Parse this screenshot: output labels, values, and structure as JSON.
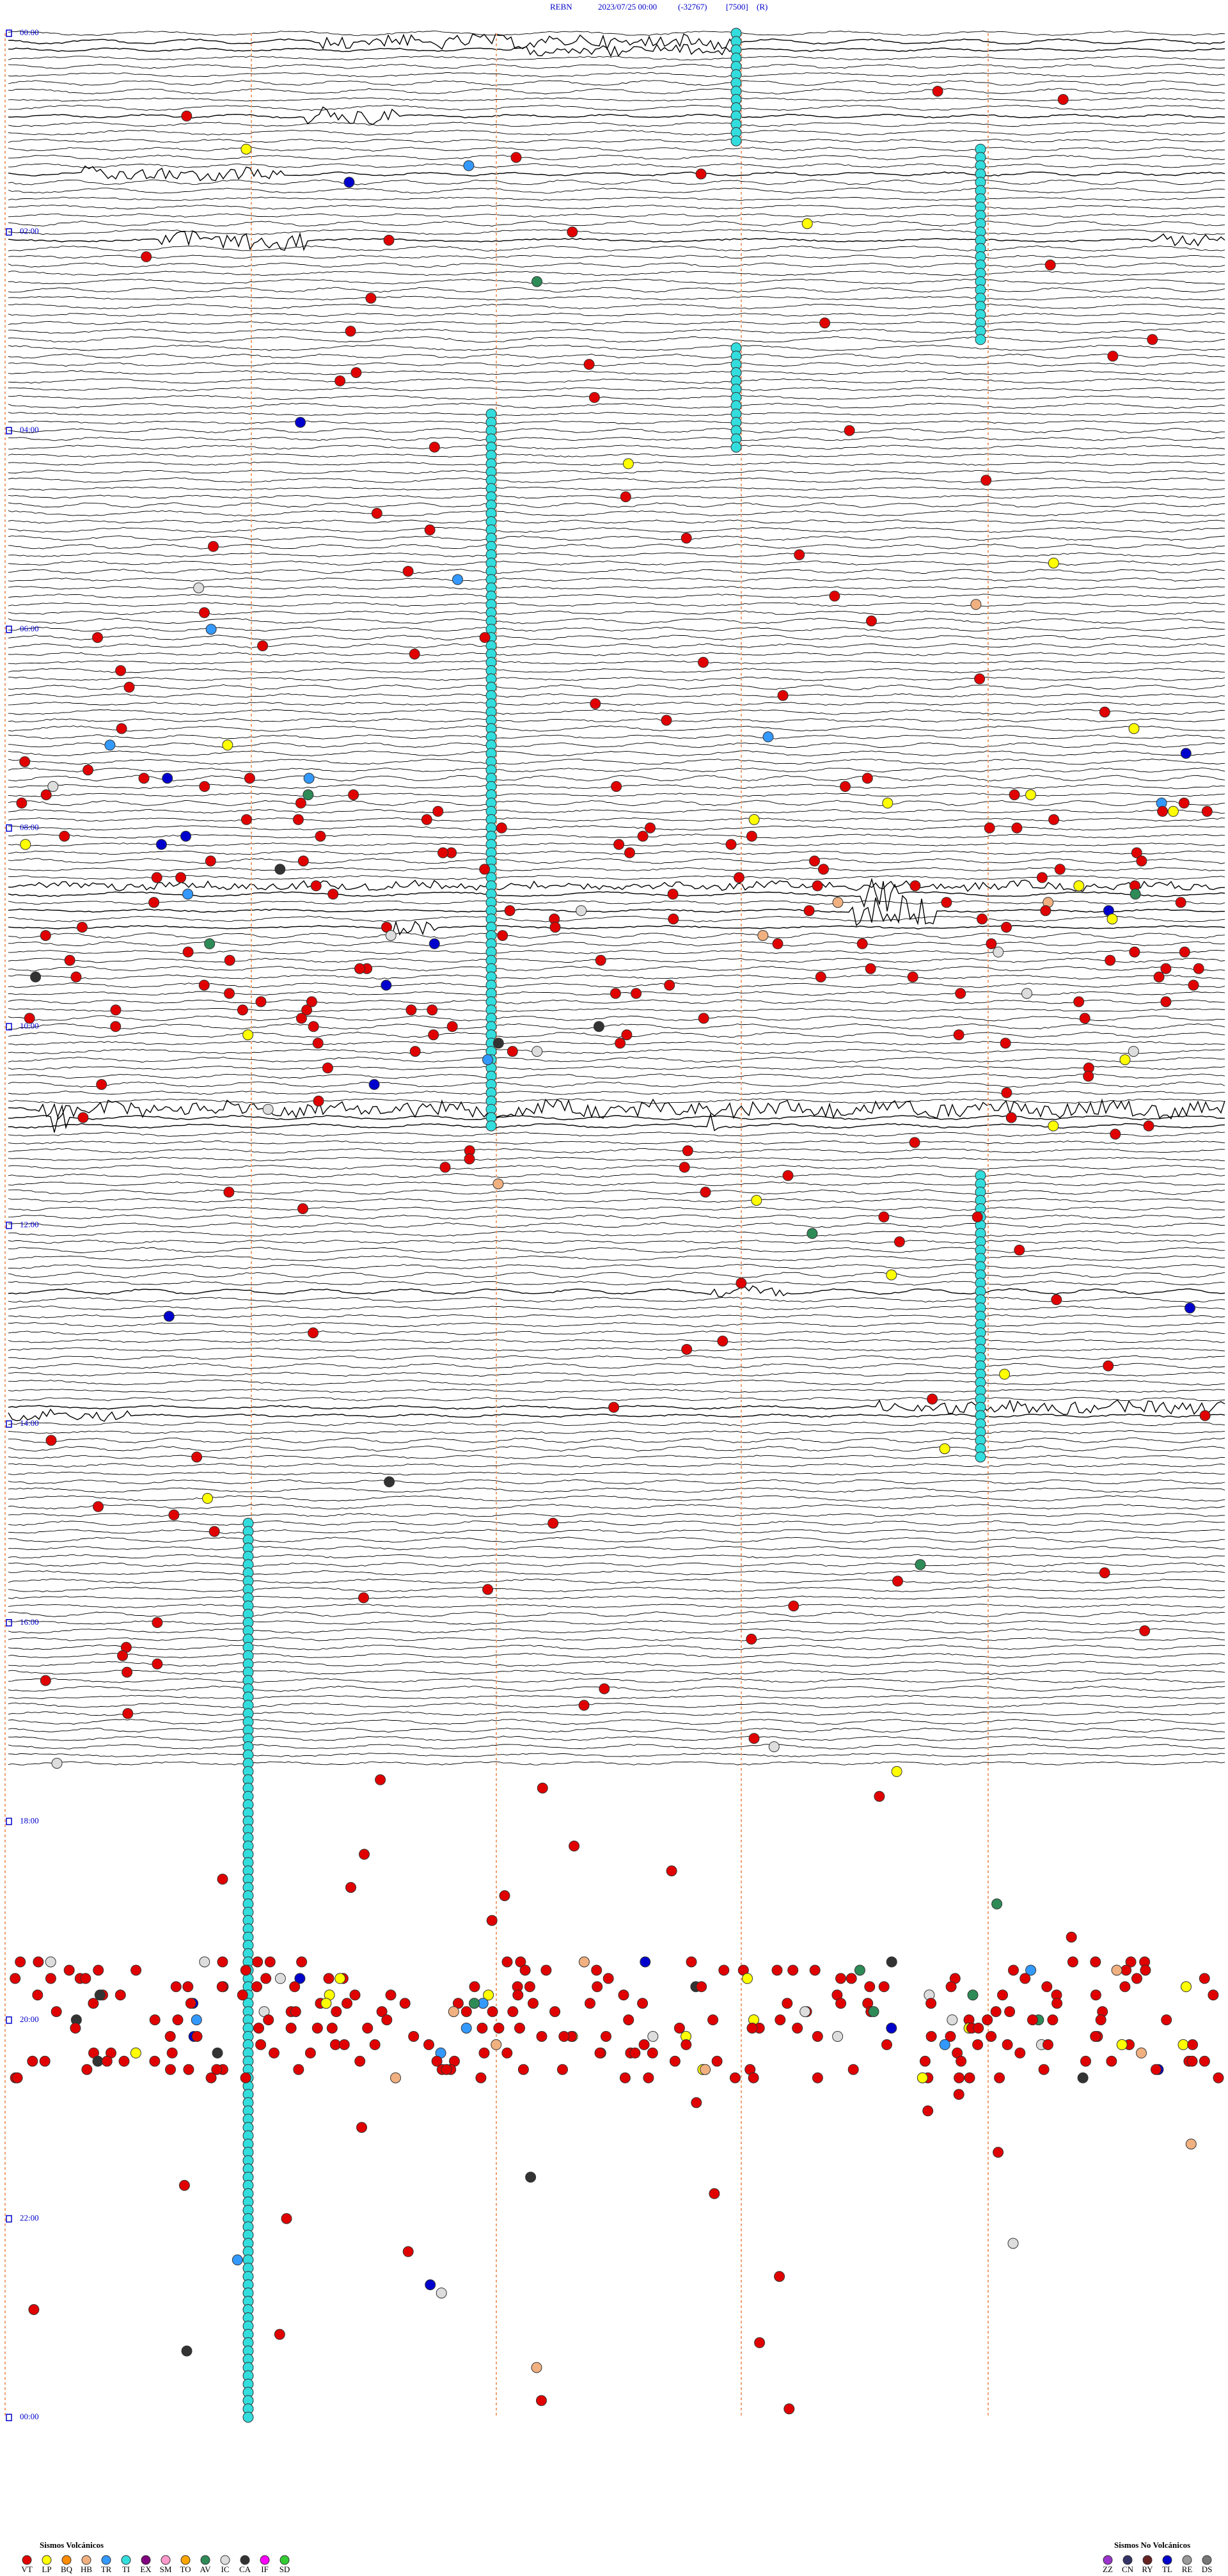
{
  "header": {
    "station": "REBN",
    "datetime": "2023/07/25 00:00",
    "code": "(-32767)",
    "scale": "[7500]",
    "flag": "(R)"
  },
  "time_labels": [
    "00:00",
    "02:00",
    "04:00",
    "06:00",
    "08:00",
    "10:00",
    "12:00",
    "14:00",
    "16:00",
    "18:00",
    "20:00",
    "22:00",
    "00:00"
  ],
  "legend": {
    "volcanic": {
      "title": "Sismos Volcánicos",
      "items": [
        {
          "code": "VT",
          "color": "#e00000"
        },
        {
          "code": "LP",
          "color": "#ffff00"
        },
        {
          "code": "BQ",
          "color": "#ff8c00"
        },
        {
          "code": "HB",
          "color": "#f0b080"
        },
        {
          "code": "TR",
          "color": "#3399ff"
        },
        {
          "code": "TI",
          "color": "#33dddd"
        },
        {
          "code": "EX",
          "color": "#800080"
        },
        {
          "code": "SM",
          "color": "#ff99cc"
        },
        {
          "code": "TO",
          "color": "#ffa500"
        },
        {
          "code": "AV",
          "color": "#2e8b57"
        },
        {
          "code": "IC",
          "color": "#dddddd"
        },
        {
          "code": "CA",
          "color": "#333333"
        },
        {
          "code": "IF",
          "color": "#ff00ff"
        },
        {
          "code": "SD",
          "color": "#33cc33"
        }
      ]
    },
    "non_volcanic": {
      "title": "Sismos No Volcánicos",
      "items": [
        {
          "code": "ZZ",
          "color": "#9933cc"
        },
        {
          "code": "CN",
          "color": "#333366"
        },
        {
          "code": "RY",
          "color": "#662222"
        },
        {
          "code": "TL",
          "color": "#0000cc"
        },
        {
          "code": "RE",
          "color": "#999999"
        },
        {
          "code": "DS",
          "color": "#777777"
        }
      ]
    }
  }
}
